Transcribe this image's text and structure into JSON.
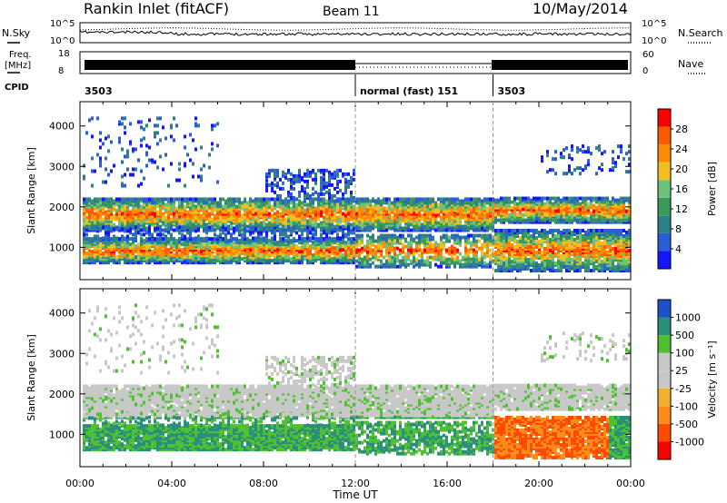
{
  "header": {
    "station": "Rankin Inlet (fitACF)",
    "beam": "Beam 11",
    "date": "10/May/2014"
  },
  "noise_panel": {
    "left_label": "N.Sky",
    "right_label": "N.Search",
    "ticks_left": [
      "10^5",
      "10^0"
    ],
    "ticks_right": [
      "10^5",
      "10^0"
    ]
  },
  "freq_panel": {
    "left_label_1": "Freq.",
    "left_label_2": "[MHz]",
    "right_label": "Nave",
    "ticks_left": [
      "18",
      "8"
    ],
    "ticks_right": [
      "60",
      "0"
    ]
  },
  "cpid": {
    "label": "CPID",
    "segments": [
      {
        "start_hour": 0,
        "text": "3503"
      },
      {
        "start_hour": 12,
        "text": "normal (fast) 151"
      },
      {
        "start_hour": 18,
        "text": "3503"
      }
    ]
  },
  "colors": {
    "power": [
      "#1515ff",
      "#2a5ed6",
      "#2f7f8a",
      "#3a9a5a",
      "#6cc27a",
      "#f0c020",
      "#ff8c00",
      "#ff5a00",
      "#ff0000"
    ],
    "velocity": [
      "#ff0000",
      "#ff4a00",
      "#ff8c1a",
      "#f0b030",
      "#c8c8c8",
      "#c8c8c8",
      "#4fc030",
      "#2a8f7a",
      "#2050c8"
    ]
  },
  "chart_data": [
    {
      "type": "heatmap",
      "name": "Power",
      "ylabel": "Slant Range [km]",
      "xlabel": "Time UT",
      "x_ticks": [
        "00:00",
        "04:00",
        "08:00",
        "12:00",
        "16:00",
        "20:00",
        "00:00"
      ],
      "y_ticks": [
        1000,
        2000,
        3000,
        4000
      ],
      "ylim": [
        200,
        4600
      ],
      "xlim_hours": [
        0,
        24
      ],
      "colorbar_label": "Power [dB]",
      "colorbar_ticks": [
        "4",
        "8",
        "12",
        "16",
        "20",
        "24",
        "28"
      ]
    },
    {
      "type": "heatmap",
      "name": "Velocity",
      "ylabel": "Slant Range [km]",
      "xlabel": "Time UT",
      "x_ticks": [
        "00:00",
        "04:00",
        "08:00",
        "12:00",
        "16:00",
        "20:00",
        "00:00"
      ],
      "y_ticks": [
        1000,
        2000,
        3000,
        4000
      ],
      "ylim": [
        200,
        4600
      ],
      "xlim_hours": [
        0,
        24
      ],
      "colorbar_label": "Velocity [m s⁻¹]",
      "colorbar_ticks": [
        "1000",
        "500",
        "100",
        "25",
        "-25",
        "-100",
        "-500",
        "-1000"
      ]
    }
  ]
}
